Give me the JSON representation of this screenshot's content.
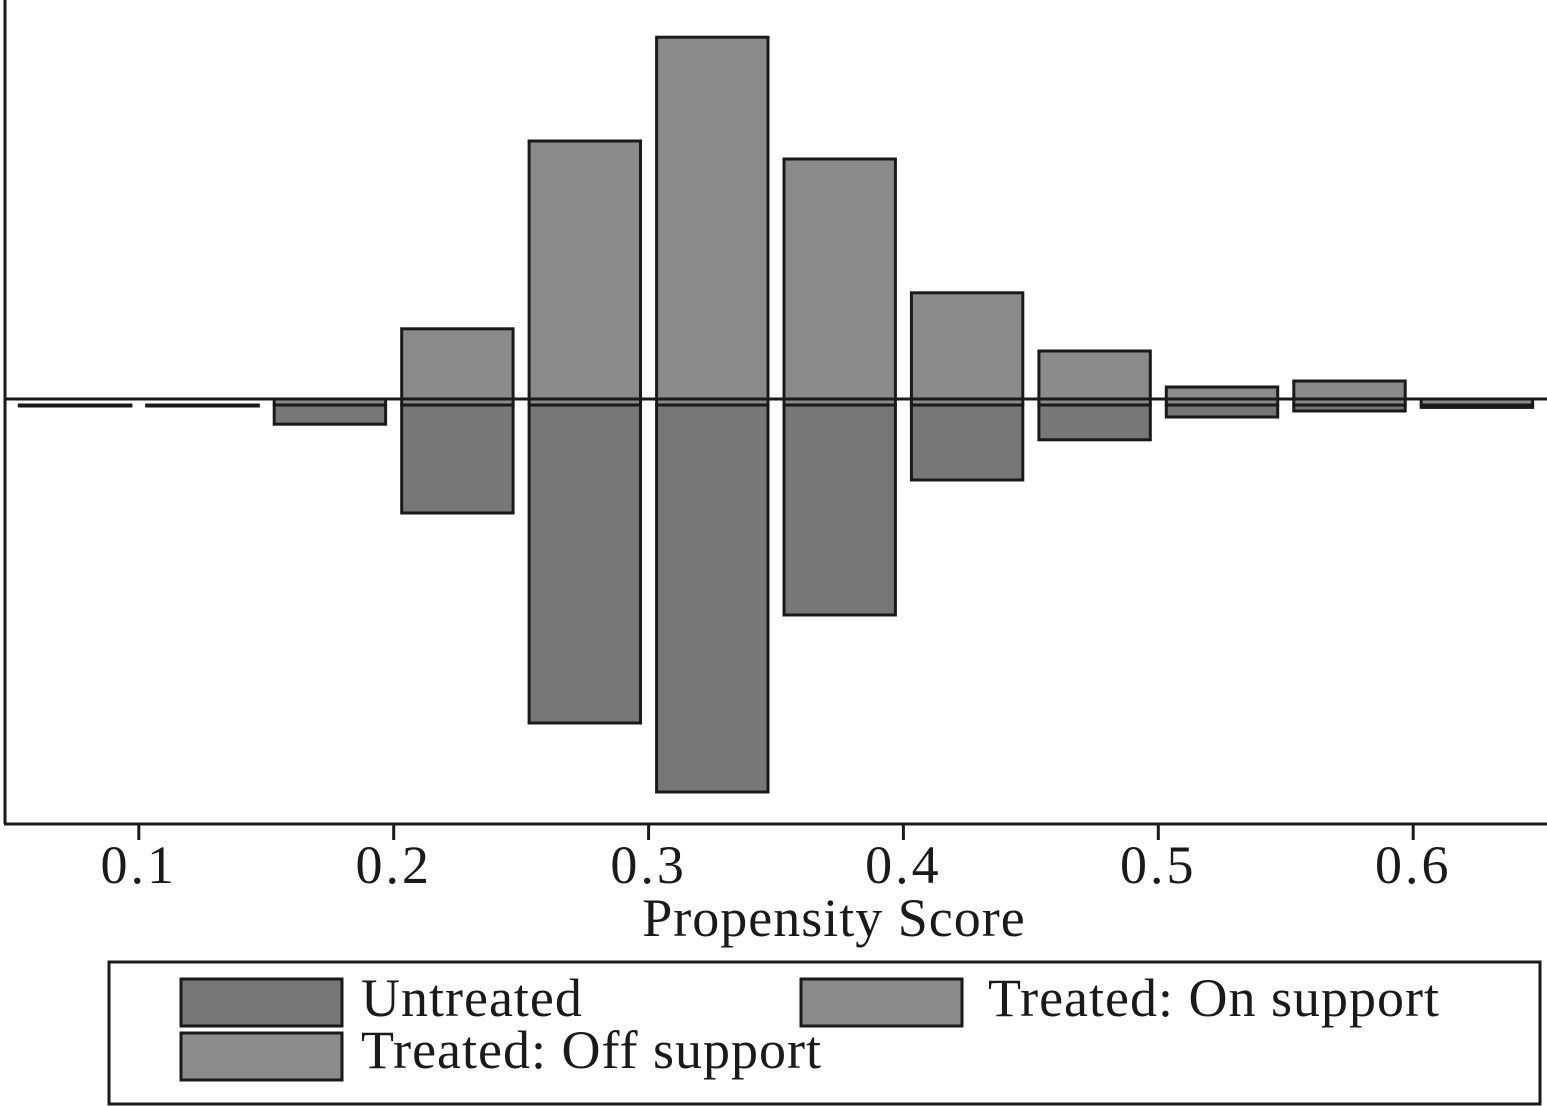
{
  "chart_data": {
    "type": "bar",
    "subtype": "mirrored-histogram",
    "title": "",
    "xlabel": "Propensity Score",
    "ylabel": "",
    "xlim": [
      0.0475,
      0.6525
    ],
    "xticks": [
      0.1,
      0.2,
      0.3,
      0.4,
      0.5,
      0.6
    ],
    "xtick_labels": [
      "0.1",
      "0.2",
      "0.3",
      "0.4",
      "0.5",
      "0.6"
    ],
    "bin_width": 0.05,
    "bin_centers": [
      0.075,
      0.125,
      0.175,
      0.225,
      0.275,
      0.325,
      0.375,
      0.425,
      0.475,
      0.525,
      0.575,
      0.625
    ],
    "series": [
      {
        "name": "Untreated",
        "direction": "down",
        "color": "#777777",
        "values": [
          0.0,
          0.0,
          0.032,
          0.18,
          0.53,
          0.645,
          0.35,
          0.125,
          0.058,
          0.02,
          0.01,
          0.004
        ]
      },
      {
        "name": "Treated: On support",
        "direction": "up",
        "color": "#8a8a8a",
        "values": [
          0.0,
          0.0,
          0.01,
          0.127,
          0.44,
          0.613,
          0.41,
          0.187,
          0.09,
          0.03,
          0.04,
          0.01
        ]
      },
      {
        "name": "Treated: Off support",
        "direction": "up",
        "color": "#8c8c8c",
        "values": [
          0,
          0,
          0,
          0,
          0,
          0,
          0,
          0,
          0,
          0,
          0,
          0
        ]
      }
    ],
    "legend": {
      "placement": "bottom",
      "items": [
        {
          "label": "Untreated",
          "color": "#777777"
        },
        {
          "label": "Treated: On support",
          "color": "#8a8a8a"
        },
        {
          "label": "Treated: Off support",
          "color": "#8c8c8c"
        }
      ]
    },
    "grid": false
  }
}
